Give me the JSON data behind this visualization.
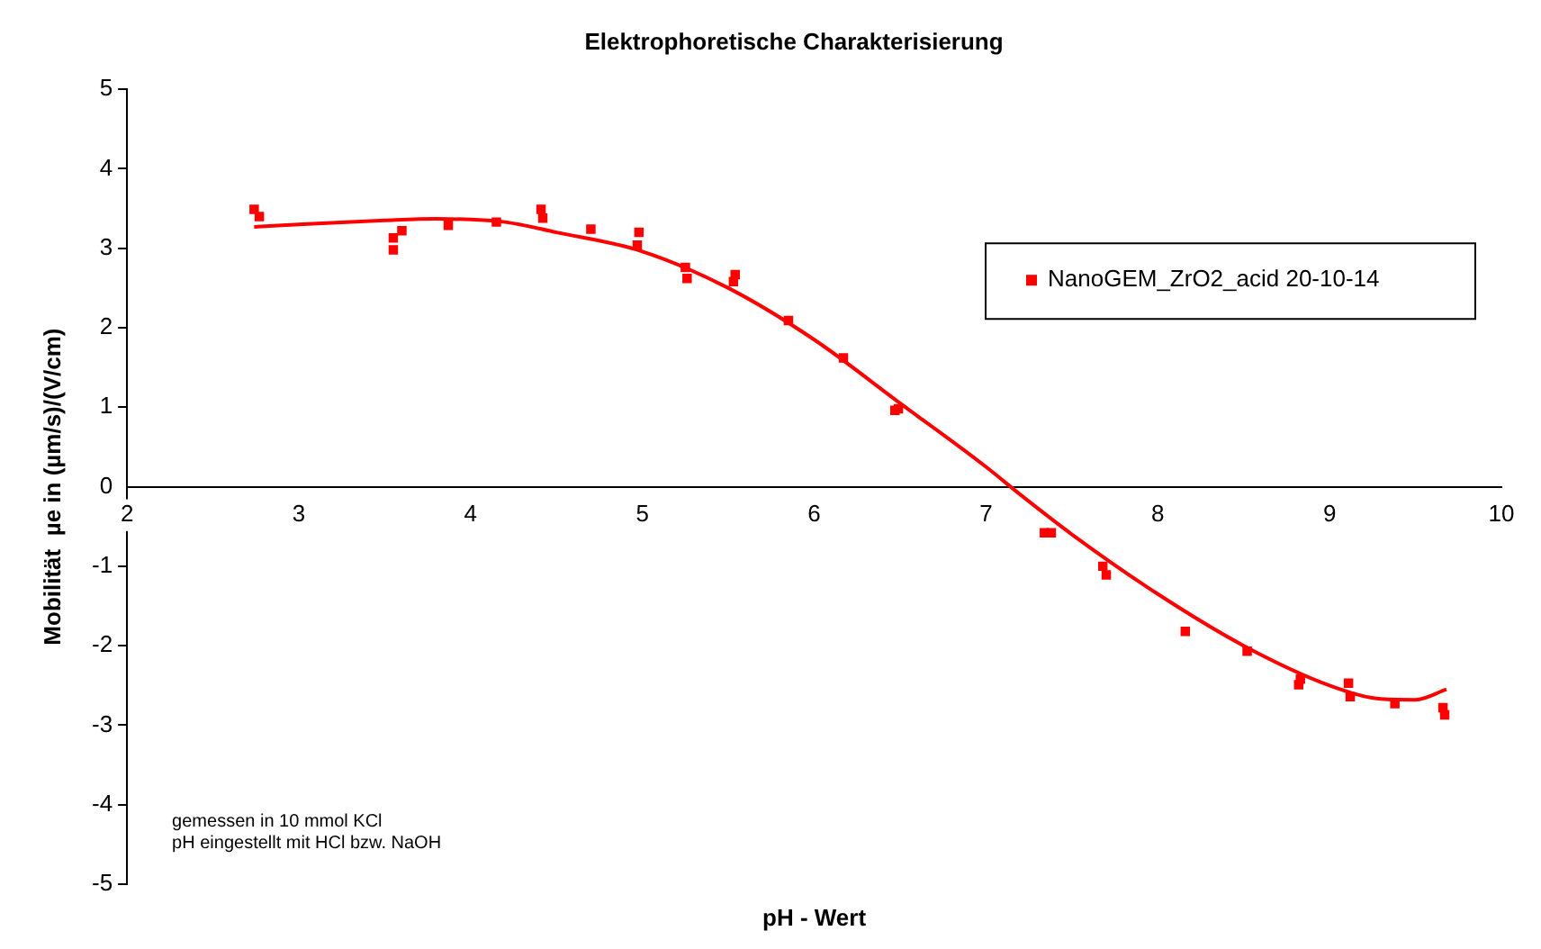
{
  "chart_data": {
    "type": "scatter",
    "title": "Elektrophoretische Charakterisierung",
    "xlabel": "pH - Wert",
    "ylabel": "Mobilität  µe in (µm/s)/(V/cm)",
    "xlim": [
      2,
      10
    ],
    "xticks": [
      2,
      3,
      4,
      5,
      6,
      7,
      8,
      9,
      10
    ],
    "ylim": [
      -5,
      5
    ],
    "yticks": [
      -5,
      -4,
      -3,
      -2,
      -1,
      0,
      1,
      2,
      3,
      4,
      5
    ],
    "grid": false,
    "legend": "top right",
    "marker": "square",
    "annotations": [
      "gemessen in 10 mmol KCl",
      "pH eingestellt mit HCl bzw. NaOH"
    ],
    "series": [
      {
        "name": "NanoGEM_ZrO2_acid 20-10-14",
        "color": "#ff0000",
        "x": [
          2.74,
          2.77,
          3.55,
          3.55,
          3.6,
          3.87,
          4.15,
          4.41,
          4.42,
          4.7,
          4.98,
          4.97,
          5.25,
          5.26,
          5.54,
          5.53,
          5.85,
          6.17,
          6.47,
          6.49,
          7.34,
          7.38,
          7.68,
          7.7,
          8.16,
          8.52,
          8.83,
          8.82,
          9.11,
          9.12,
          9.38,
          9.66,
          9.67
        ],
        "values": [
          3.49,
          3.4,
          3.13,
          2.98,
          3.22,
          3.29,
          3.33,
          3.49,
          3.38,
          3.24,
          3.2,
          3.04,
          2.76,
          2.62,
          2.67,
          2.58,
          2.09,
          1.62,
          0.96,
          0.98,
          -0.58,
          -0.58,
          -1.0,
          -1.11,
          -1.82,
          -2.07,
          -2.42,
          -2.49,
          -2.47,
          -2.64,
          -2.73,
          -2.78,
          -2.87
        ]
      },
      {
        "type": "line",
        "marker": "none",
        "color": "#ff0000",
        "x": [
          2.74,
          3.0,
          3.5,
          3.8,
          4.2,
          4.5,
          5.0,
          5.5,
          6.0,
          6.5,
          7.0,
          7.2,
          7.5,
          8.0,
          8.5,
          9.0,
          9.3,
          9.5,
          9.68
        ],
        "values": [
          3.27,
          3.3,
          3.35,
          3.37,
          3.33,
          3.2,
          2.96,
          2.5,
          1.85,
          1.05,
          0.25,
          -0.1,
          -0.6,
          -1.35,
          -2.0,
          -2.5,
          -2.67,
          -2.68,
          -2.55
        ]
      }
    ]
  }
}
